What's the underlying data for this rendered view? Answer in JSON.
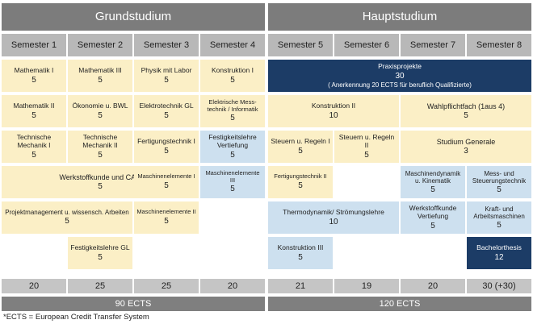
{
  "headers": {
    "grund": "Grundstudium",
    "haupt": "Hauptstudium"
  },
  "semesters": [
    "Semester 1",
    "Semester 2",
    "Semester 3",
    "Semester 4",
    "Semester 5",
    "Semester 6",
    "Semester 7",
    "Semester 8"
  ],
  "modules": {
    "mathe1": {
      "name": "Mathematik I",
      "credits": "5"
    },
    "mathe3": {
      "name": "Mathematik III",
      "credits": "5"
    },
    "physik": {
      "name": "Physik mit Labor",
      "credits": "5"
    },
    "konstr1": {
      "name": "Konstruktion I",
      "credits": "5"
    },
    "praxis": {
      "name": "Praxisprojekte",
      "credits": "30",
      "note": "( Anerkennung 20 ECTS für beruflich Qualifizierte)"
    },
    "mathe2": {
      "name": "Mathematik II",
      "credits": "5"
    },
    "oekonomie": {
      "name": "Ökonomie u. BWL",
      "credits": "5"
    },
    "etechnik": {
      "name": "Elektrotechnik GL",
      "credits": "5"
    },
    "elmess": {
      "name_line1": "Elektrische Mess-",
      "name_line2": "technik / Informatik",
      "credits": "5"
    },
    "konstr2": {
      "name": "Konstruktion II",
      "credits": "10"
    },
    "wahlpflicht": {
      "name": "Wahlpflichtfach (1aus 4)",
      "credits": "5"
    },
    "tm1": {
      "name_line1": "Technische",
      "name_line2": "Mechanik I",
      "credits": "5"
    },
    "tm2": {
      "name_line1": "Technische",
      "name_line2": "Mechanik II",
      "credits": "5"
    },
    "fertigung1": {
      "name": "Fertigungstechnik I",
      "credits": "5"
    },
    "festvert": {
      "name_line1": "Festigkeitslehre",
      "name_line2": "Vertiefung",
      "credits": "5"
    },
    "steuern1": {
      "name": "Steuern u. Regeln I",
      "credits": "5"
    },
    "steuern2": {
      "name": "Steuern u. Regeln II",
      "credits": "5"
    },
    "generale": {
      "name": "Studium Generale",
      "credits": "3"
    },
    "werkcad": {
      "name": "Werkstoffkunde und CAD",
      "credits": "5"
    },
    "mel1": {
      "name": "Maschinenelemente I",
      "credits": "5"
    },
    "mel3": {
      "name": "Maschinenelemente III",
      "credits": "5"
    },
    "fertigung2": {
      "name": "Fertigungstechnik II",
      "credits": "5"
    },
    "dynamik": {
      "name_line1": "Maschinendynamik",
      "name_line2": "u. Kinematik",
      "credits": "5"
    },
    "messsteuer": {
      "name_line1": "Mess- und",
      "name_line2": "Steuerungstechnik",
      "credits": "5"
    },
    "projekt": {
      "name": "Projektmanagement u. wissensch. Arbeiten",
      "credits": "5"
    },
    "mel2": {
      "name": "Maschinenelemente II",
      "credits": "5"
    },
    "thermo": {
      "name": "Thermodynamik/ Strömungslehre",
      "credits": "10"
    },
    "werkvert": {
      "name_line1": "Werkstoffkunde",
      "name_line2": "Vertiefung",
      "credits": "5"
    },
    "kraft": {
      "name_line1": "Kraft- und",
      "name_line2": "Arbeitsmaschinen",
      "credits": "5"
    },
    "festgl": {
      "name": "Festigkeitslehre GL",
      "credits": "5"
    },
    "konstr3": {
      "name": "Konstruktion III",
      "credits": "5"
    },
    "bachelor": {
      "name": "Bachelorthesis",
      "credits": "12"
    }
  },
  "totals": [
    "20",
    "25",
    "25",
    "20",
    "21",
    "19",
    "20",
    "30 (+30)"
  ],
  "ects": {
    "grund": "90 ECTS",
    "haupt": "120 ECTS"
  },
  "footnote": "*ECTS = European Credit Transfer System",
  "colors": {
    "header": "#7c7c7c",
    "semester": "#b8b8b8",
    "yellow": "#fbefc6",
    "blue": "#cde0ef",
    "dark": "#1c3c66"
  }
}
